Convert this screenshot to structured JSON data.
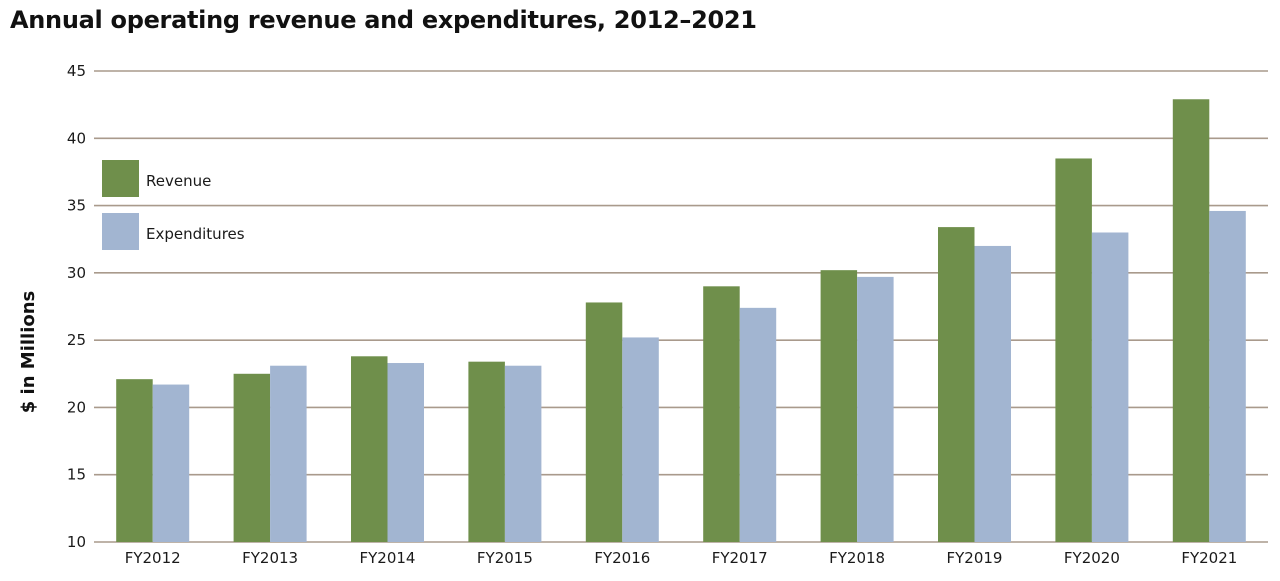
{
  "chart_data": {
    "type": "bar",
    "title": "Annual operating revenue and expenditures, 2012–2021",
    "xlabel": "",
    "ylabel": "$ in Millions",
    "ylim": [
      10,
      45
    ],
    "yticks": [
      10,
      15,
      20,
      25,
      30,
      35,
      40,
      45
    ],
    "grid": true,
    "legend_position": "top-left",
    "categories": [
      "FY2012",
      "FY2013",
      "FY2014",
      "FY2015",
      "FY2016",
      "FY2017",
      "FY2018",
      "FY2019",
      "FY2020",
      "FY2021"
    ],
    "series": [
      {
        "name": "Revenue",
        "color": "#6f8f4b",
        "values": [
          22.1,
          22.5,
          23.8,
          23.4,
          27.8,
          29.0,
          30.2,
          33.4,
          38.5,
          42.9
        ]
      },
      {
        "name": "Expenditures",
        "color": "#a2b5d1",
        "values": [
          21.7,
          23.1,
          23.3,
          23.1,
          25.2,
          27.4,
          29.7,
          32.0,
          33.0,
          34.6
        ]
      }
    ],
    "gridline_color": "#a99a8c"
  }
}
